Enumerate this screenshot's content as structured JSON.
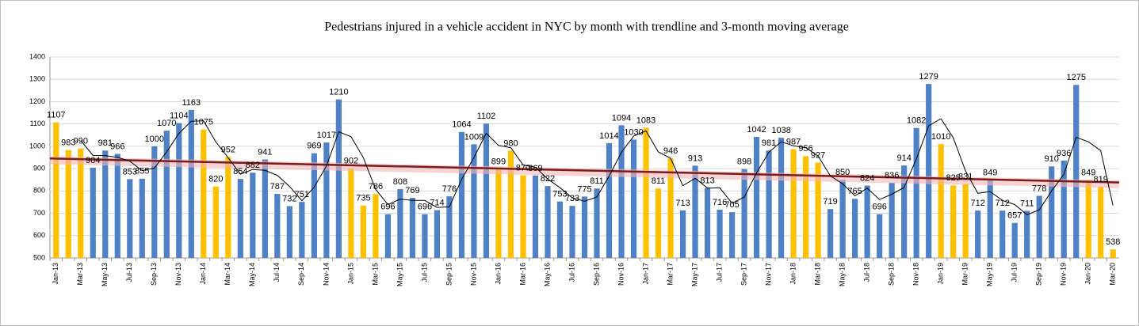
{
  "chart_data": {
    "type": "bar",
    "title": "Pedestrians injured in a vehicle accident in NYC by month with trendline and 3-month moving average",
    "categories": [
      "Jan-13",
      null,
      "Mar-13",
      null,
      "May-13",
      null,
      "Jul-13",
      null,
      "Sep-13",
      null,
      "Nov-13",
      null,
      "Jan-14",
      null,
      "Mar-14",
      null,
      "May-14",
      null,
      "Jul-14",
      null,
      "Sep-14",
      null,
      "Nov-14",
      null,
      "Jan-15",
      null,
      "Mar-15",
      null,
      "May-15",
      null,
      "Jul-15",
      null,
      "Sep-15",
      null,
      "Nov-15",
      null,
      "Jan-16",
      null,
      "Mar-16",
      null,
      "May-16",
      null,
      "Jul-16",
      null,
      "Sep-16",
      null,
      "Nov-16",
      null,
      "Jan-17",
      null,
      "Mar-17",
      null,
      "May-17",
      null,
      "Jul-17",
      null,
      "Sep-17",
      null,
      "Nov-17",
      null,
      "Jan-18",
      null,
      "Mar-18",
      null,
      "May-18",
      null,
      "Jul-18",
      null,
      "Sep-18",
      null,
      "Nov-18",
      null,
      "Jan-19",
      null,
      "Mar-19",
      null,
      "May-19",
      null,
      "Jul-19",
      null,
      "Sep-19",
      null,
      "Nov-19",
      null,
      "Jan-20",
      null,
      "Mar-20"
    ],
    "values": [
      1107,
      983,
      990,
      904,
      981,
      966,
      853,
      855,
      1000,
      1070,
      1104,
      1163,
      1075,
      820,
      952,
      854,
      882,
      941,
      787,
      732,
      751,
      969,
      1017,
      1210,
      902,
      735,
      786,
      696,
      808,
      769,
      696,
      714,
      776,
      1064,
      1009,
      1102,
      899,
      980,
      870,
      869,
      822,
      753,
      733,
      775,
      811,
      1014,
      1094,
      1030,
      1083,
      811,
      946,
      713,
      913,
      813,
      716,
      705,
      898,
      1042,
      981,
      1038,
      987,
      956,
      927,
      719,
      850,
      765,
      824,
      696,
      836,
      914,
      1082,
      1279,
      1010,
      825,
      831,
      712,
      849,
      712,
      657,
      711,
      778,
      910,
      936,
      1275,
      849,
      819,
      538
    ],
    "colors": [
      "#ffc000",
      "#ffc000",
      "#ffc000",
      "#4f81c7",
      "#4f81c7",
      "#4f81c7",
      "#4f81c7",
      "#4f81c7",
      "#4f81c7",
      "#4f81c7",
      "#4f81c7",
      "#4f81c7",
      "#ffc000",
      "#ffc000",
      "#ffc000",
      "#4f81c7",
      "#4f81c7",
      "#4f81c7",
      "#4f81c7",
      "#4f81c7",
      "#4f81c7",
      "#4f81c7",
      "#4f81c7",
      "#4f81c7",
      "#ffc000",
      "#ffc000",
      "#ffc000",
      "#4f81c7",
      "#4f81c7",
      "#4f81c7",
      "#4f81c7",
      "#4f81c7",
      "#4f81c7",
      "#4f81c7",
      "#4f81c7",
      "#4f81c7",
      "#ffc000",
      "#ffc000",
      "#ffc000",
      "#4f81c7",
      "#4f81c7",
      "#4f81c7",
      "#4f81c7",
      "#4f81c7",
      "#4f81c7",
      "#4f81c7",
      "#4f81c7",
      "#4f81c7",
      "#ffc000",
      "#ffc000",
      "#ffc000",
      "#4f81c7",
      "#4f81c7",
      "#4f81c7",
      "#4f81c7",
      "#4f81c7",
      "#4f81c7",
      "#4f81c7",
      "#4f81c7",
      "#4f81c7",
      "#ffc000",
      "#ffc000",
      "#ffc000",
      "#4f81c7",
      "#4f81c7",
      "#4f81c7",
      "#4f81c7",
      "#4f81c7",
      "#4f81c7",
      "#4f81c7",
      "#4f81c7",
      "#4f81c7",
      "#ffc000",
      "#ffc000",
      "#ffc000",
      "#4f81c7",
      "#4f81c7",
      "#4f81c7",
      "#4f81c7",
      "#4f81c7",
      "#4f81c7",
      "#4f81c7",
      "#4f81c7",
      "#4f81c7",
      "#ffc000",
      "#ffc000",
      "#ffc000"
    ],
    "ylim": [
      500,
      1400
    ],
    "yticks": [
      500,
      600,
      700,
      800,
      900,
      1000,
      1100,
      1200,
      1300,
      1400
    ],
    "grid": true,
    "trendline": true,
    "trendline_color": "#7b1c1c",
    "moving_average_window": 3,
    "moving_average_color": "#000000"
  }
}
